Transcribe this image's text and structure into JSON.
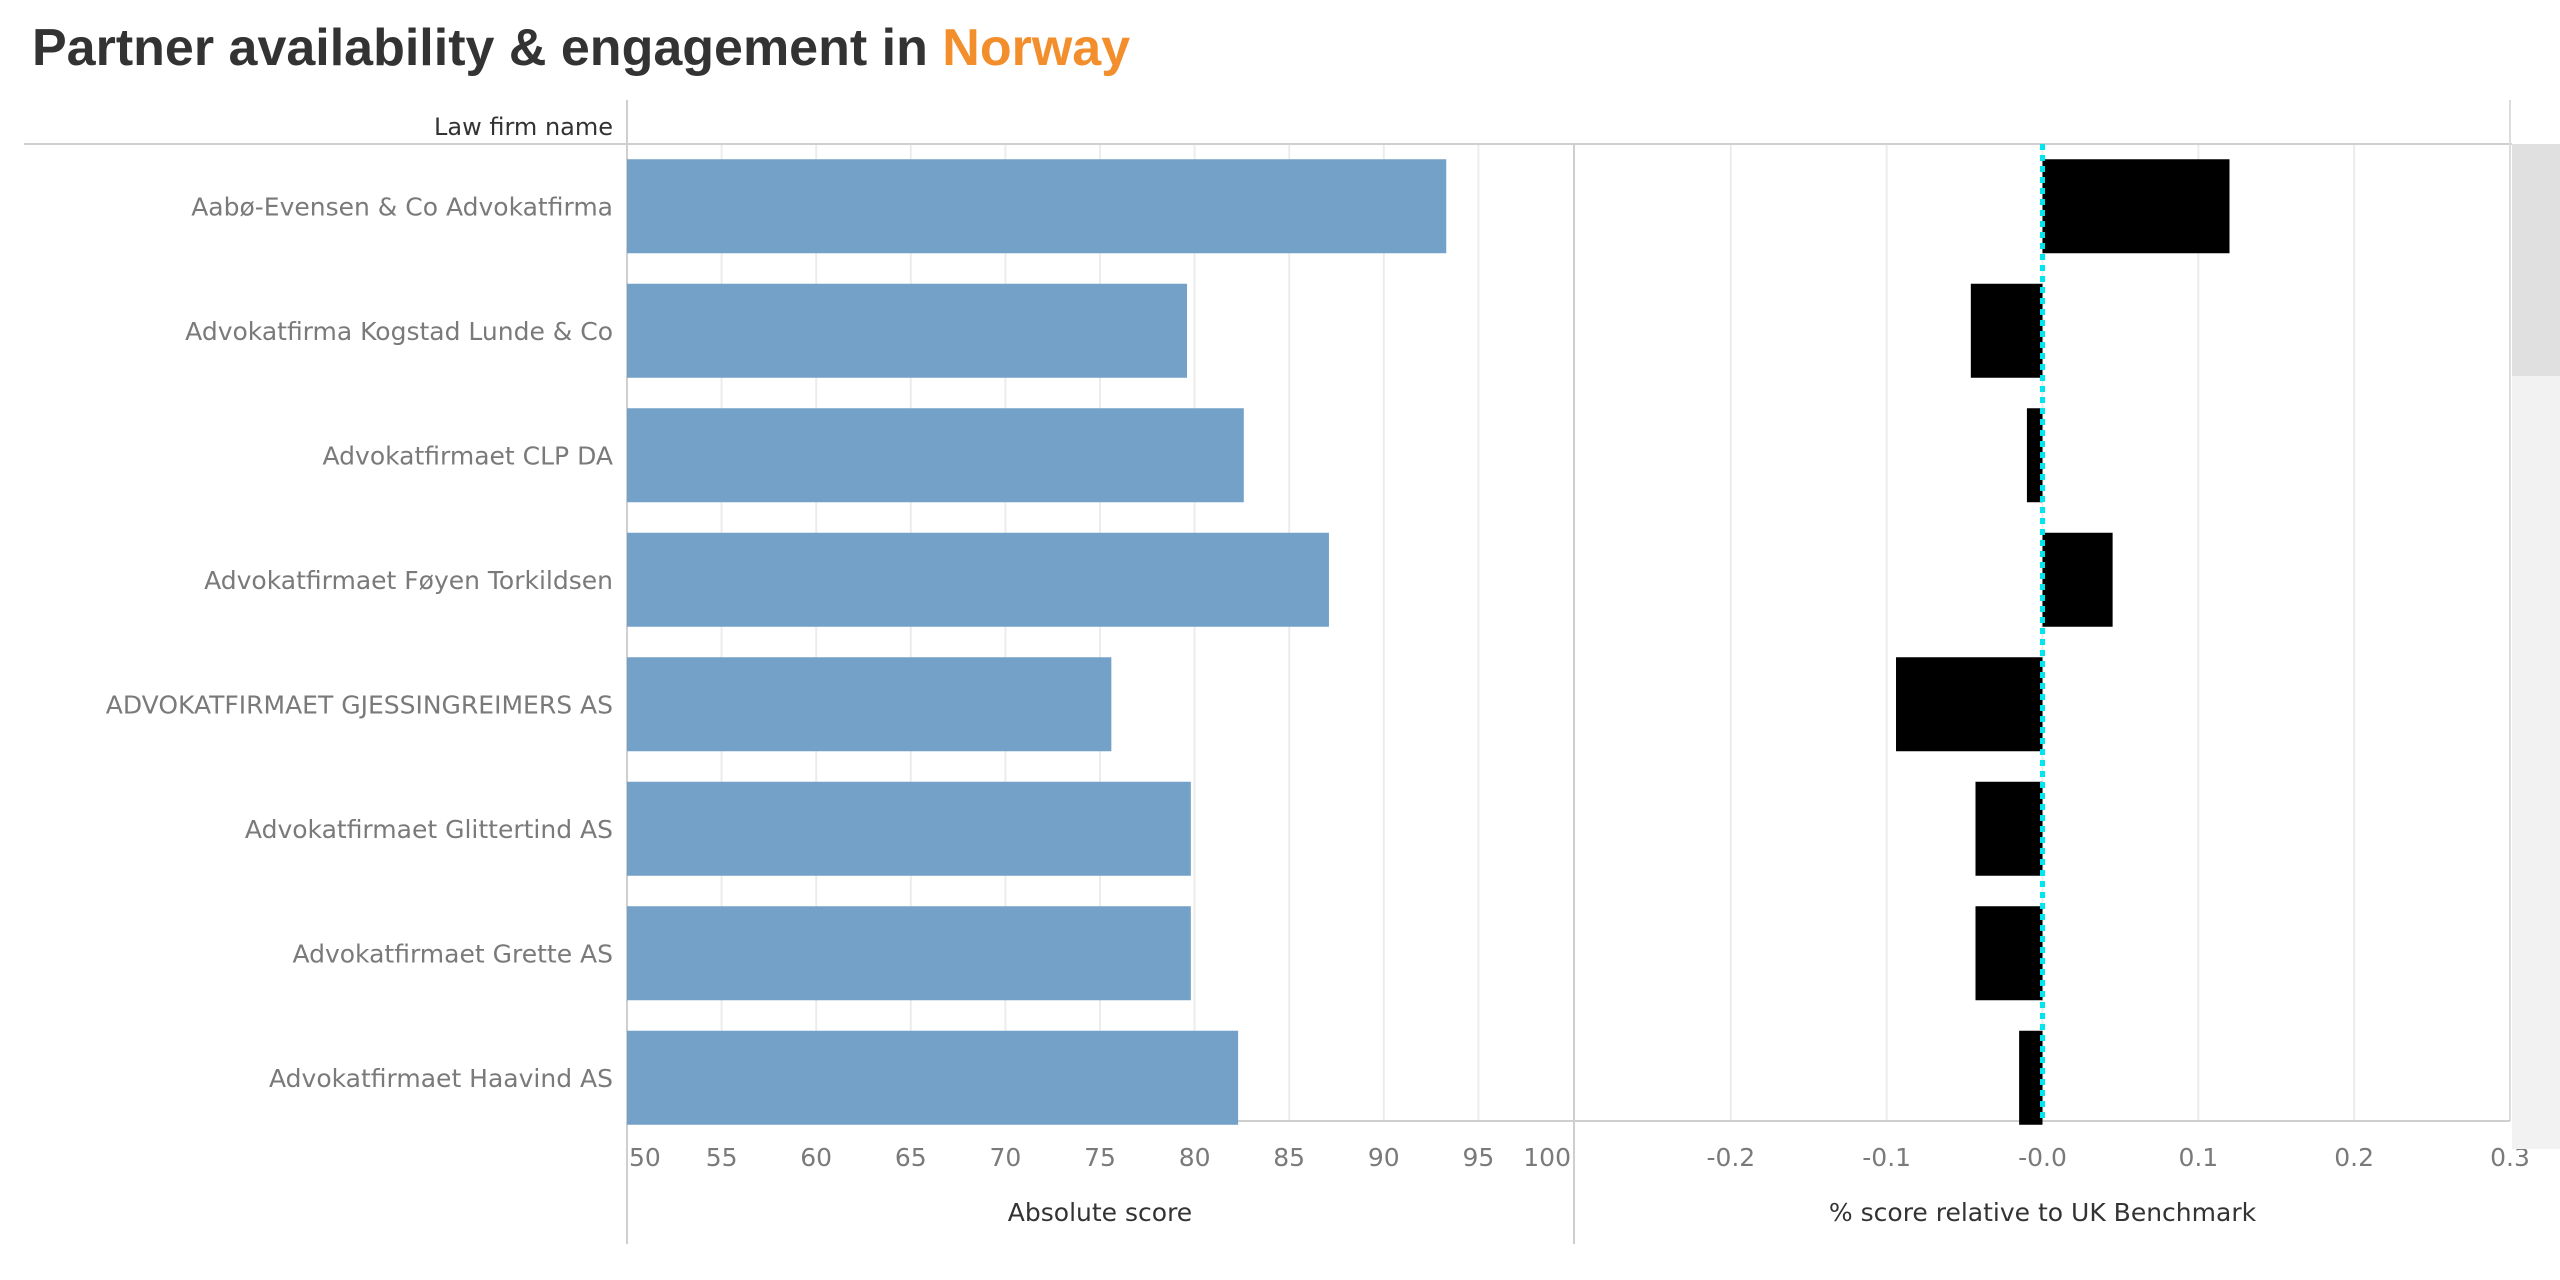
{
  "title": {
    "prefix": "Partner availability & engagement in ",
    "highlight": "Norway"
  },
  "colors": {
    "title_text": "#333333",
    "highlight": "#f28e2b",
    "bar_absolute": "#74a1c7",
    "bar_relative": "#000000",
    "benchmark_line": "#00e5ee",
    "label_text": "#7a7a7a"
  },
  "chart_data": [
    {
      "type": "bar",
      "orientation": "horizontal",
      "row_header": "Law firm name",
      "categories": [
        "Aabø-Evensen & Co Advokatfirma",
        "Advokatfirma Kogstad Lunde & Co",
        "Advokatfirmaet CLP DA",
        "Advokatfirmaet Føyen Torkildsen",
        "ADVOKATFIRMAET GJESSINGREIMERS AS",
        "Advokatfirmaet Glittertind AS",
        "Advokatfirmaet Grette AS",
        "Advokatfirmaet Haavind AS"
      ],
      "values": [
        93.3,
        79.6,
        82.6,
        87.1,
        75.6,
        79.8,
        79.8,
        82.3
      ],
      "xlabel": "Absolute score",
      "xlim": [
        50,
        100
      ],
      "xticks": [
        "50",
        "55",
        "60",
        "65",
        "70",
        "75",
        "80",
        "85",
        "90",
        "95",
        "100"
      ],
      "grid": true
    },
    {
      "type": "bar",
      "orientation": "horizontal",
      "values": [
        0.12,
        -0.046,
        -0.01,
        0.045,
        -0.094,
        -0.043,
        -0.043,
        -0.015
      ],
      "xlabel": "% score relative to UK Benchmark",
      "xlim": [
        -0.3,
        0.3
      ],
      "xticks": [
        "-0.2",
        "-0.1",
        "-0.0",
        "0.1",
        "0.2",
        "0.3"
      ],
      "xtick_values": [
        -0.2,
        -0.1,
        0.0,
        0.1,
        0.2,
        0.3
      ],
      "reference_line": 0,
      "grid": true
    }
  ]
}
